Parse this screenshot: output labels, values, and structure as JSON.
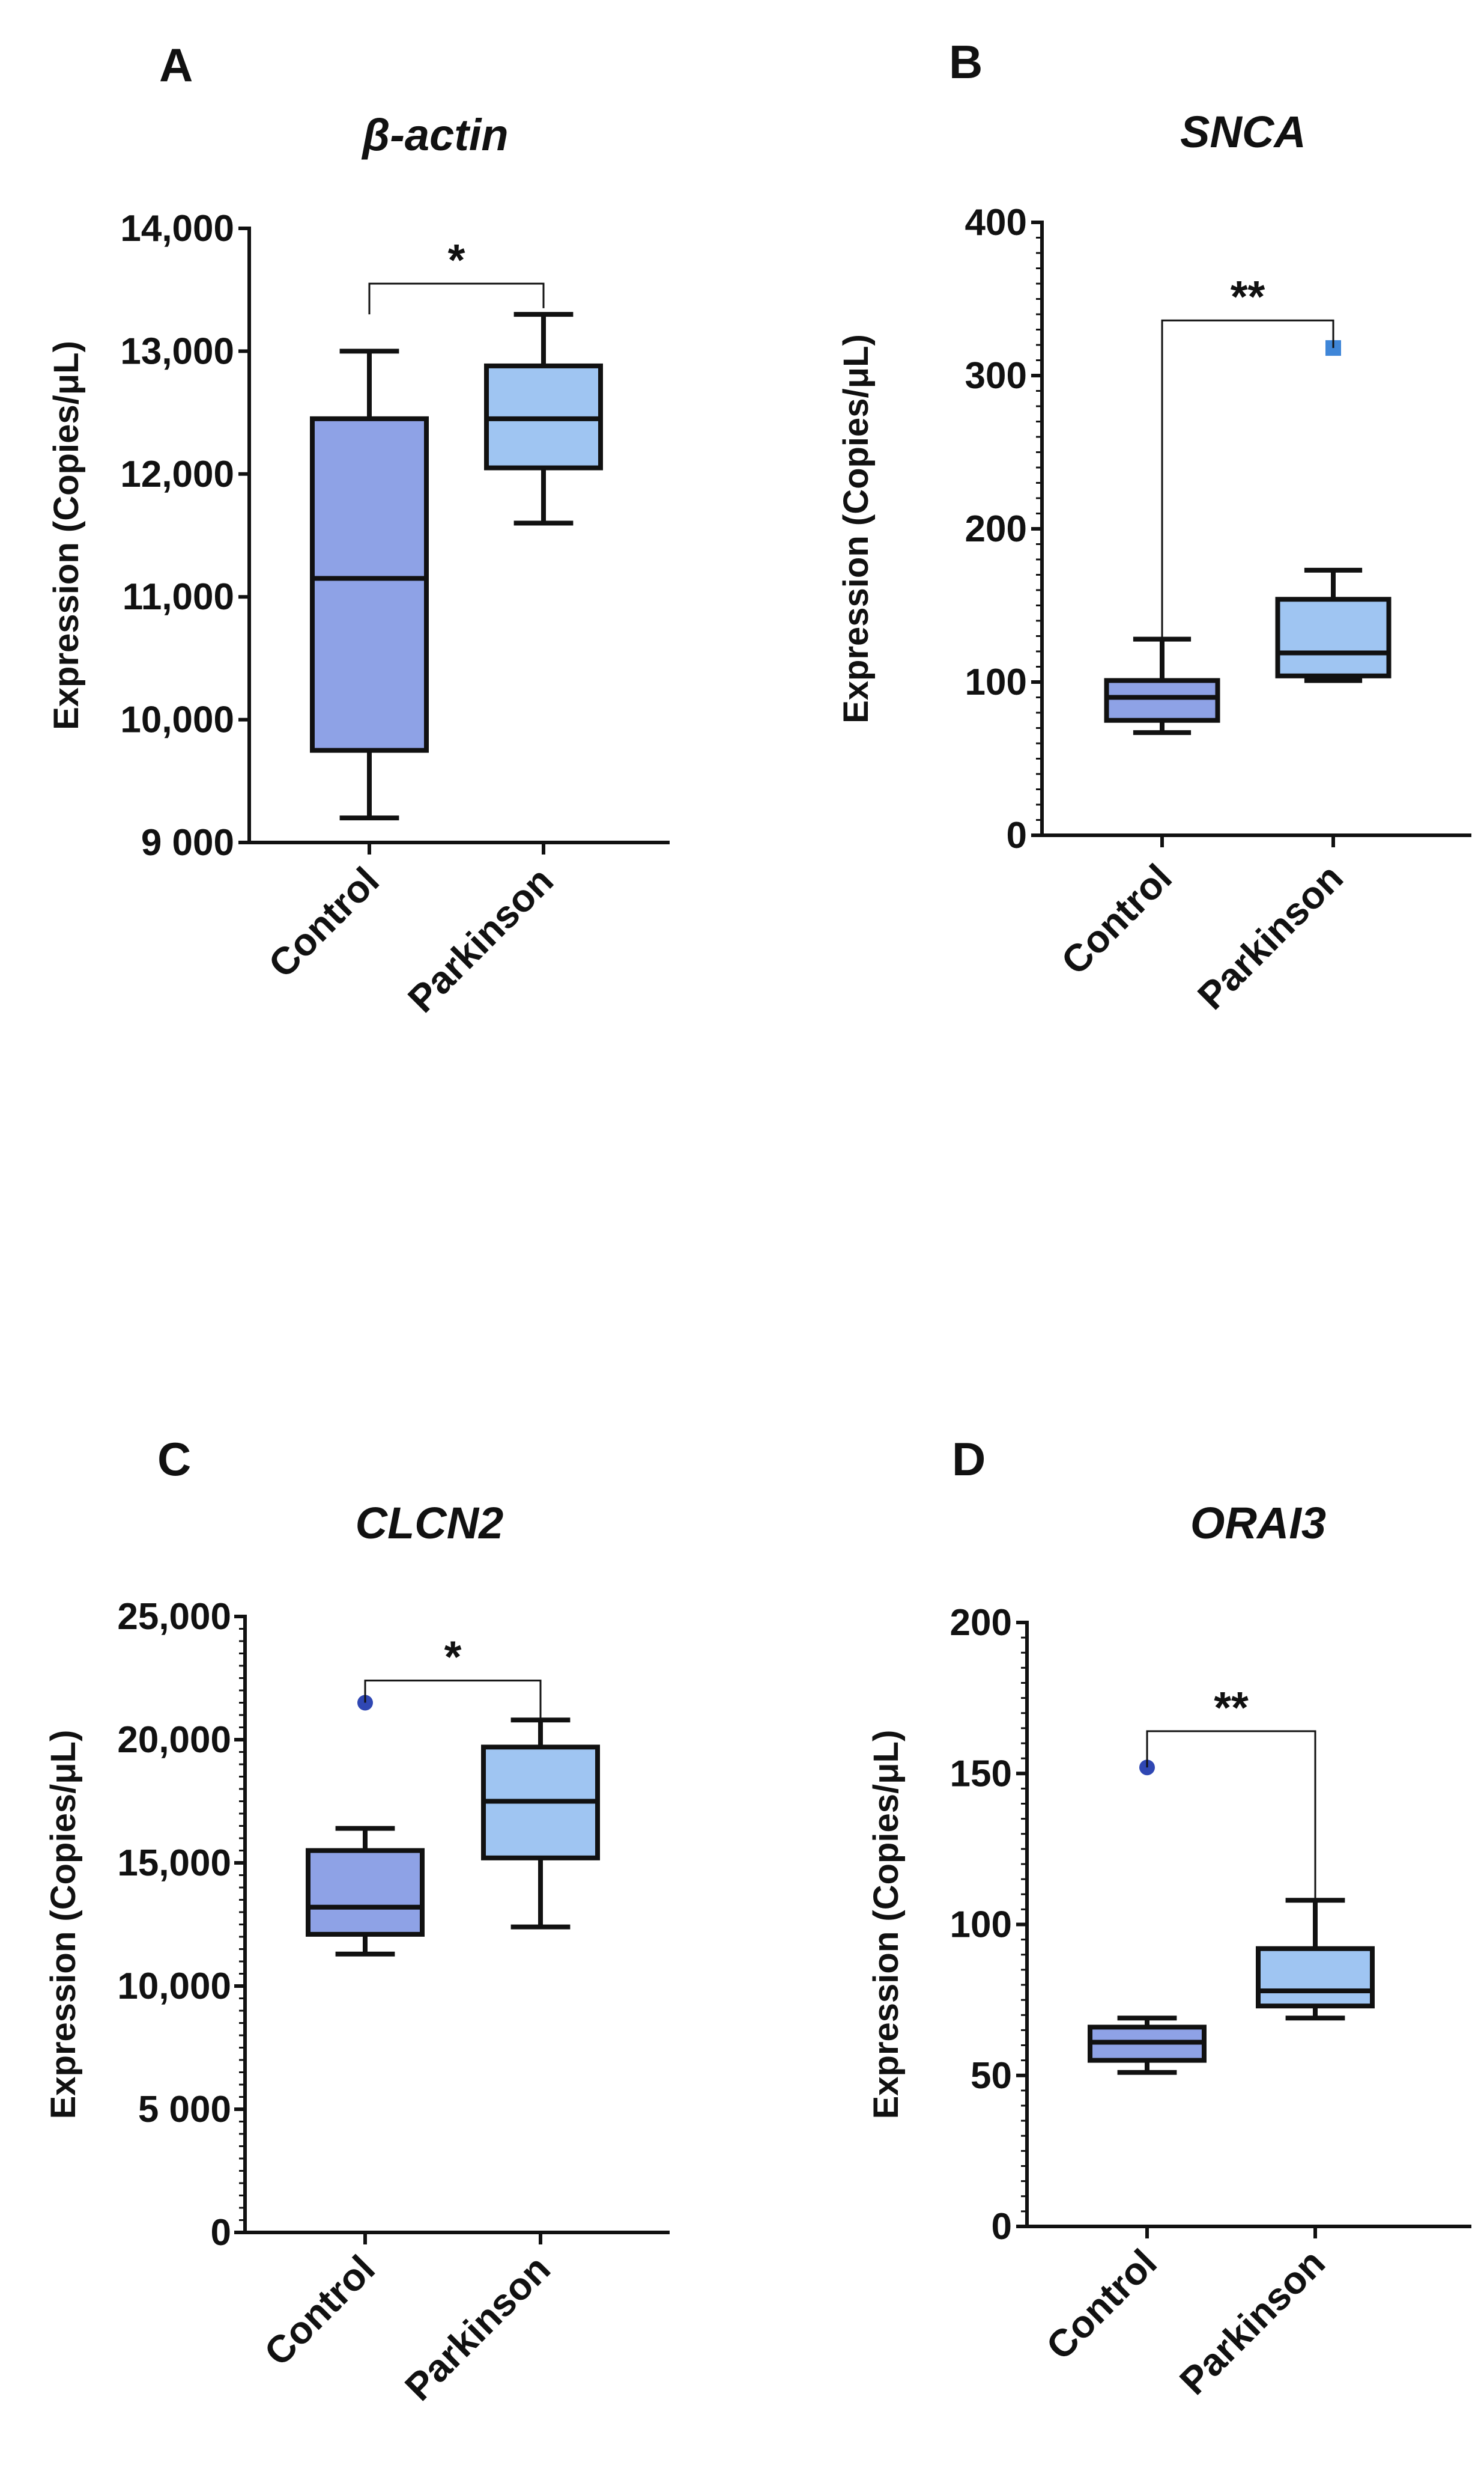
{
  "figure": {
    "colors": {
      "control": "#8ea2e6",
      "parkinson": "#9fc5f2",
      "control_outlier": "#2f47b3",
      "parkinson_outlier": "#3f86d8",
      "ink": "#111111"
    }
  },
  "chart_data": [
    {
      "type": "box",
      "panel_label": "A",
      "title": "β-actin",
      "ylabel": "Expression (Copies/μL)",
      "xlabel": "",
      "ylim": [
        9000,
        14000
      ],
      "yticks": [
        9000,
        10000,
        11000,
        12000,
        13000,
        14000
      ],
      "ytick_labels": [
        "9 000",
        "10,000",
        "11,000",
        "12,000",
        "13,000",
        "14,000"
      ],
      "minor_ticks": 0,
      "categories": [
        "Control",
        "Parkinson"
      ],
      "boxes": [
        {
          "name": "Control",
          "min": 9200,
          "q1": 9750,
          "median": 11150,
          "q3": 12450,
          "max": 13000,
          "outliers": []
        },
        {
          "name": "Parkinson",
          "min": 11600,
          "q1": 12050,
          "median": 12450,
          "q3": 12880,
          "max": 13300,
          "outliers": []
        }
      ],
      "significance": {
        "label": "*",
        "y": 13550,
        "left_drop": 13300,
        "right_drop": 13350
      }
    },
    {
      "type": "box",
      "panel_label": "B",
      "title": "SNCA",
      "ylabel": "Expression (Copies/μL)",
      "xlabel": "",
      "ylim": [
        0,
        400
      ],
      "yticks": [
        0,
        100,
        200,
        300,
        400
      ],
      "ytick_labels": [
        "0",
        "100",
        "200",
        "300",
        "400"
      ],
      "minor_ticks": 9,
      "categories": [
        "Control",
        "Parkinson"
      ],
      "boxes": [
        {
          "name": "Control",
          "min": 67,
          "q1": 75,
          "median": 90,
          "q3": 101,
          "max": 128,
          "outliers": []
        },
        {
          "name": "Parkinson",
          "min": 101,
          "q1": 104,
          "median": 119,
          "q3": 154,
          "max": 173,
          "outliers": [
            318
          ]
        }
      ],
      "significance": {
        "label": "**",
        "y": 336,
        "left_drop": 128,
        "right_drop": 318
      }
    },
    {
      "type": "box",
      "panel_label": "C",
      "title": "CLCN2",
      "ylabel": "Expression (Copies/μL)",
      "xlabel": "",
      "ylim": [
        0,
        25000
      ],
      "yticks": [
        0,
        5000,
        10000,
        15000,
        20000,
        25000
      ],
      "ytick_labels": [
        "0",
        "5 000",
        "10,000",
        "15,000",
        "20,000",
        "25,000"
      ],
      "minor_ticks": 9,
      "categories": [
        "Control",
        "Parkinson"
      ],
      "boxes": [
        {
          "name": "Control",
          "min": 11300,
          "q1": 12100,
          "median": 13200,
          "q3": 15500,
          "max": 16400,
          "outliers": [
            21500
          ]
        },
        {
          "name": "Parkinson",
          "min": 12400,
          "q1": 15200,
          "median": 17500,
          "q3": 19700,
          "max": 20800,
          "outliers": []
        }
      ],
      "significance": {
        "label": "*",
        "y": 22400,
        "left_drop": 21500,
        "right_drop": 20800
      }
    },
    {
      "type": "box",
      "panel_label": "D",
      "title": "ORAI3",
      "ylabel": "Expression (Copies/μL)",
      "xlabel": "",
      "ylim": [
        0,
        200
      ],
      "yticks": [
        0,
        50,
        100,
        150,
        200
      ],
      "ytick_labels": [
        "0",
        "50",
        "100",
        "150",
        "200"
      ],
      "minor_ticks": 9,
      "categories": [
        "Control",
        "Parkinson"
      ],
      "boxes": [
        {
          "name": "Control",
          "min": 51,
          "q1": 55,
          "median": 61,
          "q3": 66,
          "max": 69,
          "outliers": [
            152
          ]
        },
        {
          "name": "Parkinson",
          "min": 69,
          "q1": 73,
          "median": 78,
          "q3": 92,
          "max": 108,
          "outliers": []
        }
      ],
      "significance": {
        "label": "**",
        "y": 164,
        "left_drop": 152,
        "right_drop": 108
      }
    }
  ]
}
